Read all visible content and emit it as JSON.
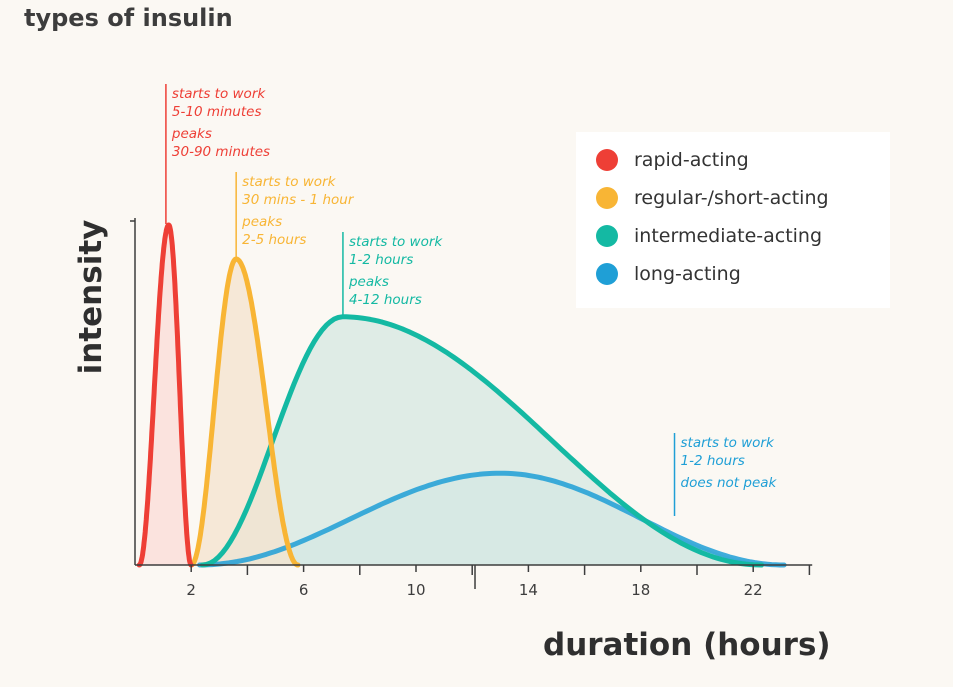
{
  "title": "types of insulin",
  "colors": {
    "background": "#fbf8f3",
    "axis": "#3d3d3d",
    "rapid": "#ee3f36",
    "regular": "#f8b535",
    "intermediate": "#14b9a3",
    "long": "#1f9fd6",
    "rapid_fill": "#fbdcd7",
    "regular_fill": "#f4e3cd",
    "intermediate_fill": "#d6e8e2",
    "long_fill": "#cde6e6"
  },
  "chart_data": {
    "type": "area",
    "title": "types of insulin",
    "xlabel": "duration (hours)",
    "ylabel": "intensity",
    "xlim": [
      0,
      24
    ],
    "ylim": [
      0,
      1
    ],
    "x_ticks": [
      2,
      6,
      10,
      14,
      18,
      22
    ],
    "x_minor_ticks": [
      4,
      8,
      12,
      16,
      20,
      24
    ],
    "grid": false,
    "legend_position": "top-right",
    "series": [
      {
        "key": "rapid",
        "name": "rapid-acting",
        "start_hours": 0.15,
        "peak_hours": 1.2,
        "end_hours": 2.0,
        "peak_intensity": 1.0,
        "annotation": {
          "x": 1.1,
          "lines": [
            "starts to work",
            "5-10 minutes",
            "peaks",
            "30-90 minutes"
          ]
        }
      },
      {
        "key": "regular",
        "name": "regular-/short-acting",
        "start_hours": 2.0,
        "peak_hours": 3.6,
        "end_hours": 5.8,
        "peak_intensity": 0.9,
        "annotation": {
          "x": 3.6,
          "lines": [
            "starts to work",
            "30 mins - 1 hour",
            "peaks",
            "2-5 hours"
          ]
        }
      },
      {
        "key": "intermediate",
        "name": "intermediate-acting",
        "start_hours": 2.4,
        "peak_hours": 7.4,
        "end_hours": 22.3,
        "peak_intensity": 0.73,
        "annotation": {
          "x": 7.4,
          "lines": [
            "starts to work",
            "1-2 hours",
            "peaks",
            "4-12 hours"
          ]
        }
      },
      {
        "key": "long",
        "name": "long-acting",
        "start_hours": 2.3,
        "peak_hours": 13.0,
        "end_hours": 23.1,
        "peak_intensity": 0.27,
        "annotation": {
          "x": 19.2,
          "lines": [
            "starts to work",
            "1-2 hours",
            "does not peak"
          ]
        }
      }
    ]
  }
}
